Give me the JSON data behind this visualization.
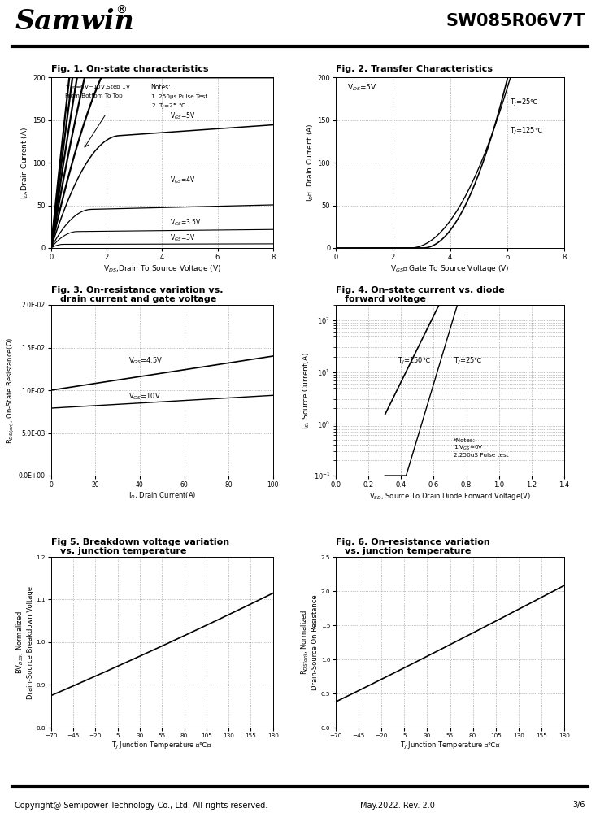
{
  "title_company": "Samwin",
  "title_part": "SW085R06V7T",
  "footer_left": "Copyright@ Semipower Technology Co., Ltd. All rights reserved.",
  "footer_mid": "May.2022. Rev. 2.0",
  "footer_right": "3/6",
  "fig1_title": "Fig. 1. On-state characteristics",
  "fig1_xlabel": "V$_{DS}$,Drain To Source Voltage (V)",
  "fig1_ylabel": "I$_D$,Drain Current (A)",
  "fig1_xlim": [
    0,
    8
  ],
  "fig1_ylim": [
    0,
    200
  ],
  "fig1_yticks": [
    0,
    50,
    100,
    150,
    200
  ],
  "fig1_xticks": [
    0,
    2,
    4,
    6,
    8
  ],
  "fig2_title": "Fig. 2. Transfer Characteristics",
  "fig2_xlabel": "V$_{GS}$， Gate To Source Voltage (V)",
  "fig2_ylabel": "I$_D$，  Drain Current (A)",
  "fig2_xlim": [
    0,
    8
  ],
  "fig2_ylim": [
    0,
    200
  ],
  "fig2_yticks": [
    0,
    50,
    100,
    150,
    200
  ],
  "fig2_xticks": [
    0,
    2,
    4,
    6,
    8
  ],
  "fig3_title_line1": "Fig. 3. On-resistance variation vs.",
  "fig3_title_line2": "    drain current and gate voltage",
  "fig3_xlabel": "I$_D$, Drain Current(A)",
  "fig3_ylabel": "R$_{DS(on)}$, On-State Resistance(Ω)",
  "fig3_xlim": [
    0,
    100
  ],
  "fig3_ylim": [
    0.0,
    0.02
  ],
  "fig3_ytick_vals": [
    0.0,
    0.005,
    0.01,
    0.015,
    0.02
  ],
  "fig3_ytick_labels": [
    "0.0E+00",
    "5.0E-03",
    "1.0E-02",
    "1.5E-02",
    "2.0E-02"
  ],
  "fig3_xticks": [
    0,
    20,
    40,
    60,
    80,
    100
  ],
  "fig4_title_line1": "Fig. 4. On-state current vs. diode",
  "fig4_title_line2": "    forward voltage",
  "fig4_xlabel": "V$_{SD}$, Source To Drain Diode Forward Voltage(V)",
  "fig4_ylabel": "I$_S$, Source Current(A)",
  "fig4_xlim": [
    0.0,
    1.4
  ],
  "fig4_ylim": [
    0.1,
    200
  ],
  "fig4_xticks": [
    0.0,
    0.2,
    0.4,
    0.6,
    0.8,
    1.0,
    1.2,
    1.4
  ],
  "fig5_title_line1": "Fig 5. Breakdown voltage variation",
  "fig5_title_line2": "vs. junction temperature",
  "fig5_xlabel": "T$_J$ Junction Temperature （℃）",
  "fig5_ylabel": "BV$_{DSS}$, Normalized\nDrain-Source Breakdown Voltage",
  "fig5_xlim": [
    -70,
    180
  ],
  "fig5_ylim": [
    0.8,
    1.2
  ],
  "fig5_xticks": [
    -70,
    -45,
    -20,
    5,
    30,
    55,
    80,
    105,
    130,
    155,
    180
  ],
  "fig5_yticks": [
    0.8,
    0.9,
    1.0,
    1.1,
    1.2
  ],
  "fig6_title_line1": "Fig. 6. On-resistance variation",
  "fig6_title_line2": "vs. junction temperature",
  "fig6_xlabel": "T$_J$ Junction Temperature （℃）",
  "fig6_ylabel": "R$_{DS(on)}$, Normalized\nDrain-Source On Resistance",
  "fig6_xlim": [
    -70,
    180
  ],
  "fig6_ylim": [
    0.0,
    2.5
  ],
  "fig6_xticks": [
    -70,
    -45,
    -20,
    5,
    30,
    55,
    80,
    105,
    130,
    155,
    180
  ],
  "fig6_yticks": [
    0.0,
    0.5,
    1.0,
    1.5,
    2.0,
    2.5
  ]
}
